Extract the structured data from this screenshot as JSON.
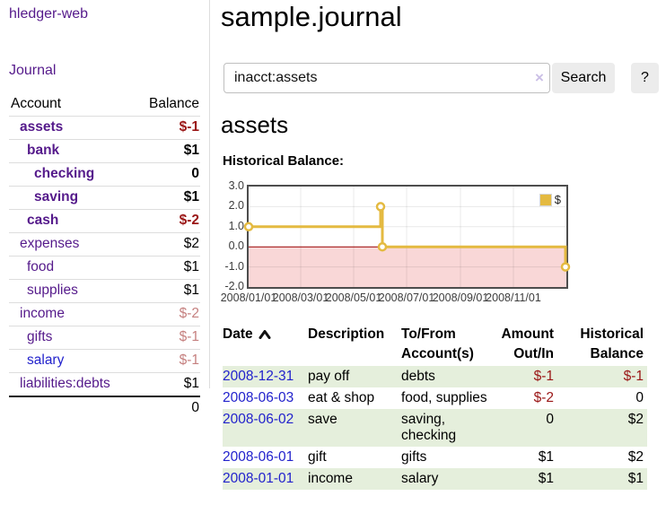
{
  "sidebar": {
    "brand": "hledger-web",
    "nav": {
      "journal_label": "Journal"
    },
    "accounts_table": {
      "headers": {
        "account": "Account",
        "balance": "Balance"
      },
      "rows": [
        {
          "name": "assets",
          "level": 1,
          "bold": true,
          "link_color": "purple",
          "balance": "$-1",
          "balance_color": "negative-strong"
        },
        {
          "name": "bank",
          "level": 2,
          "bold": true,
          "link_color": "purple",
          "balance": "$1",
          "balance_color": "positive"
        },
        {
          "name": "checking",
          "level": 3,
          "bold": true,
          "link_color": "purple",
          "balance": "0",
          "balance_color": "positive"
        },
        {
          "name": "saving",
          "level": 3,
          "bold": true,
          "link_color": "purple",
          "balance": "$1",
          "balance_color": "positive"
        },
        {
          "name": "cash",
          "level": 2,
          "bold": true,
          "link_color": "purple",
          "balance": "$-2",
          "balance_color": "negative-strong"
        },
        {
          "name": "expenses",
          "level": 1,
          "bold": false,
          "link_color": "purple",
          "balance": "$2",
          "balance_color": "positive"
        },
        {
          "name": "food",
          "level": 2,
          "bold": false,
          "link_color": "purple",
          "balance": "$1",
          "balance_color": "positive"
        },
        {
          "name": "supplies",
          "level": 2,
          "bold": false,
          "link_color": "purple",
          "balance": "$1",
          "balance_color": "positive"
        },
        {
          "name": "income",
          "level": 1,
          "bold": false,
          "link_color": "purple",
          "balance": "$-2",
          "balance_color": "negative-soft"
        },
        {
          "name": "gifts",
          "level": 2,
          "bold": false,
          "link_color": "purple",
          "balance": "$-1",
          "balance_color": "negative-soft"
        },
        {
          "name": "salary",
          "level": 2,
          "bold": false,
          "link_color": "blue",
          "balance": "$-1",
          "balance_color": "negative-soft"
        },
        {
          "name": "liabilities:debts",
          "level": 1,
          "bold": false,
          "link_color": "purple",
          "balance": "$1",
          "balance_color": "positive"
        }
      ],
      "total": "0"
    }
  },
  "main": {
    "title": "sample.journal",
    "search": {
      "value": "inacct:assets",
      "clear_icon": "×",
      "button_label": "Search",
      "help_label": "?"
    },
    "account_heading": "assets",
    "chart_heading": "Historical Balance:"
  },
  "chart_data": {
    "type": "line",
    "title": "Historical Balance",
    "step": true,
    "series": [
      {
        "name": "$",
        "color": "#e4ba41",
        "points": [
          [
            "2008-01-01",
            1
          ],
          [
            "2008-06-01",
            2
          ],
          [
            "2008-06-03",
            0
          ],
          [
            "2008-12-31",
            -1
          ]
        ]
      }
    ],
    "x_range": [
      "2008-01-01",
      "2009-01-01"
    ],
    "x_ticks": [
      "2008/01/01",
      "2008/03/01",
      "2008/05/01",
      "2008/07/01",
      "2008/09/01",
      "2008/11/01"
    ],
    "y_ticks": [
      3.0,
      2.0,
      1.0,
      0.0,
      -1.0,
      -2.0
    ],
    "ylim": [
      -2.0,
      3.0
    ],
    "grid": true,
    "legend_position": "top-right",
    "marker_fill": "#ffffff",
    "negative_region_color": "#f9d7d7",
    "zero_line_color": "#990000"
  },
  "register_table": {
    "headers": [
      {
        "label": "Date",
        "align": "left",
        "sort": "asc"
      },
      {
        "label": "Description",
        "align": "left"
      },
      {
        "label": "To/From Account(s)",
        "align": "left"
      },
      {
        "label": "Amount Out/In",
        "align": "right"
      },
      {
        "label": "Historical Balance",
        "align": "right"
      }
    ],
    "rows": [
      {
        "date": "2008-12-31",
        "description": "pay off",
        "accounts": "debts",
        "amount": "$-1",
        "balance": "$-1"
      },
      {
        "date": "2008-06-03",
        "description": "eat & shop",
        "accounts": "food, supplies",
        "amount": "$-2",
        "balance": "0"
      },
      {
        "date": "2008-06-02",
        "description": "save",
        "accounts": "saving, checking",
        "amount": "0",
        "balance": "$2"
      },
      {
        "date": "2008-06-01",
        "description": "gift",
        "accounts": "gifts",
        "amount": "$1",
        "balance": "$2"
      },
      {
        "date": "2008-01-01",
        "description": "income",
        "accounts": "salary",
        "amount": "$1",
        "balance": "$1"
      }
    ]
  },
  "colors": {
    "link_purple": "#551a8b",
    "link_blue": "#2222cc",
    "negative_strong": "#9a1616",
    "negative_soft": "#c5807f",
    "row_stripe_green": "#e5efdc",
    "chart_line": "#e4ba41",
    "chart_negative_region": "#f9d7d7",
    "chart_zero_line": "#990000"
  }
}
